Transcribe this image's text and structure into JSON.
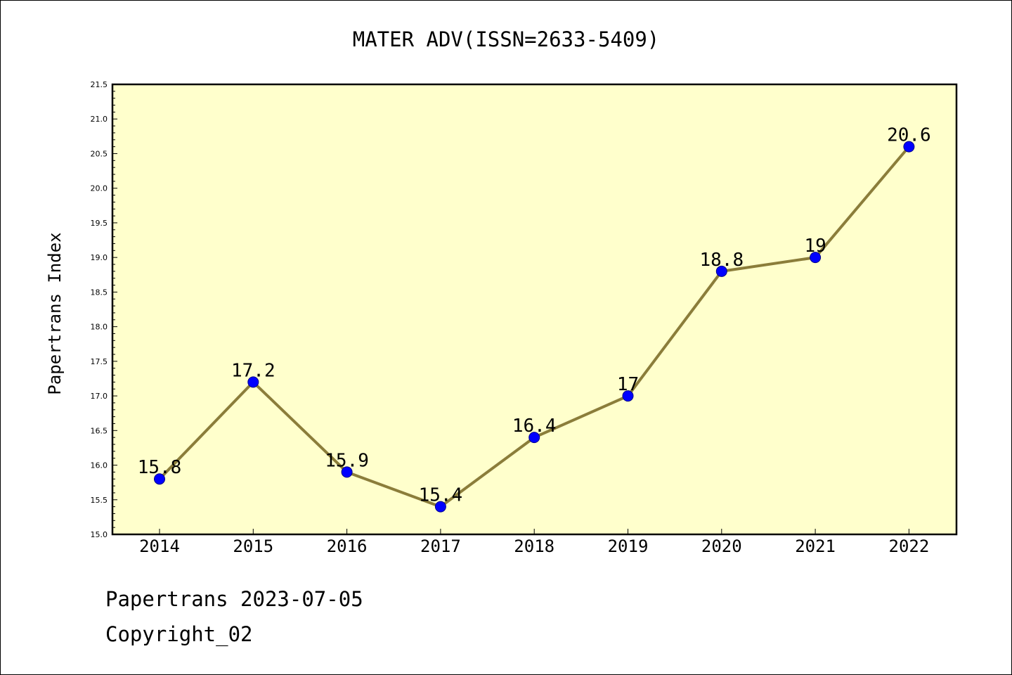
{
  "chart_data": {
    "type": "line",
    "title": "MATER ADV(ISSN=2633-5409)",
    "ylabel": "Papertrans Index",
    "xlabel": "",
    "categories": [
      "2014",
      "2015",
      "2016",
      "2017",
      "2018",
      "2019",
      "2020",
      "2021",
      "2022"
    ],
    "series": [
      {
        "values": [
          15.8,
          17.2,
          15.9,
          15.4,
          16.4,
          17,
          18.8,
          19,
          20.6
        ],
        "labels": [
          "15.8",
          "17.2",
          "15.9",
          "15.4",
          "16.4",
          "17",
          "18.8",
          "19",
          "20.6"
        ],
        "line_color": "#8b7d3a",
        "marker_color": "#0000ff"
      }
    ],
    "ylim": [
      15.0,
      21.5
    ],
    "yticks": [
      "15.0",
      "15.5",
      "16.0",
      "16.5",
      "17.0",
      "17.5",
      "18.0",
      "18.5",
      "19.0",
      "19.5",
      "20.0",
      "20.5",
      "21.0",
      "21.5"
    ],
    "grid": false,
    "plot_background": "#ffffcc"
  },
  "footer": {
    "line1": "Papertrans 2023-07-05",
    "line2": "Copyright_02"
  }
}
